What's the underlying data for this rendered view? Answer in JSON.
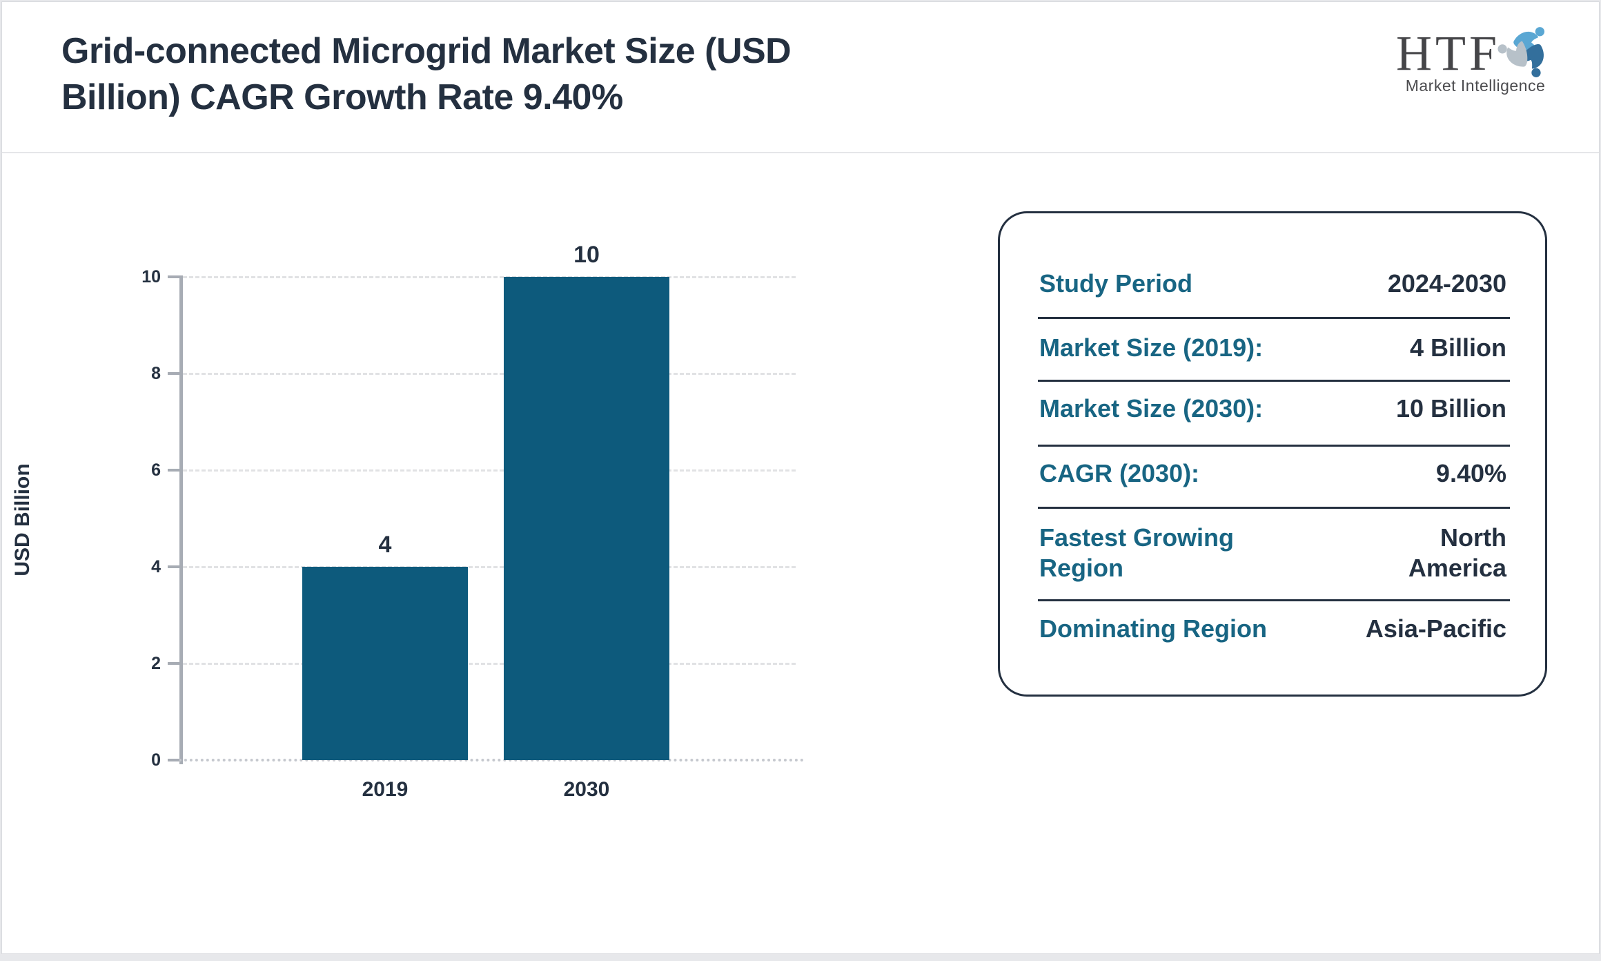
{
  "header": {
    "title": "Grid-connected Microgrid Market Size (USD\nBillion) CAGR Growth Rate 9.40%"
  },
  "logo": {
    "text": "HTF",
    "subtext": "Market Intelligence",
    "colors": {
      "light_blue": "#5aa7d3",
      "dark_blue": "#336f9c",
      "pale_gray": "#b7c1c9",
      "text_gray": "#454548"
    }
  },
  "chart_data": {
    "type": "bar",
    "categories": [
      "2019",
      "2030"
    ],
    "values": [
      4,
      10
    ],
    "bar_labels": [
      "4",
      "10"
    ],
    "title": "Grid-connected Microgrid Market Size (USD Billion) CAGR Growth Rate 9.40%",
    "xlabel": "",
    "ylabel": "USD Billion",
    "ylim": [
      0,
      10
    ],
    "yticks": [
      0,
      2,
      4,
      6,
      8,
      10
    ],
    "grid": "horizontal-dashed",
    "legend": "none",
    "bar_color": "#0d5a7c"
  },
  "panel": {
    "rows": [
      {
        "label": "Study Period",
        "value": "2024-2030"
      },
      {
        "label": "Market Size (2019):",
        "value": "4 Billion"
      },
      {
        "label": "Market Size (2030):",
        "value": "10 Billion"
      },
      {
        "label": "CAGR (2030):",
        "value": "9.40%"
      },
      {
        "label": "Fastest Growing\nRegion",
        "value": "North\nAmerica"
      },
      {
        "label": "Dominating Region",
        "value": "Asia-Pacific"
      }
    ],
    "label_color": "#186583",
    "value_color": "#243040"
  }
}
